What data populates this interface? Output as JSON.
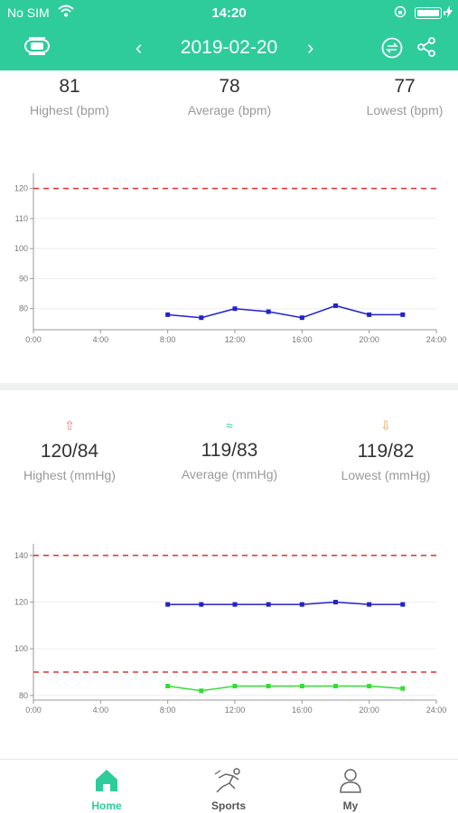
{
  "status_bar": {
    "carrier": "No SIM",
    "time": "14:20"
  },
  "nav": {
    "date": "2019-02-20",
    "prev_symbol": "‹",
    "next_symbol": "›"
  },
  "heart_rate": {
    "highest": {
      "value": "81",
      "label": "Highest (bpm)"
    },
    "average": {
      "value": "78",
      "label": "Average (bpm)"
    },
    "lowest": {
      "value": "77",
      "label": "Lowest (bpm)"
    }
  },
  "blood_pressure": {
    "highest": {
      "value": "120/84",
      "label": "Highest (mmHg)",
      "icon": "⇧",
      "color": "#f08080"
    },
    "average": {
      "value": "119/83",
      "label": "Average (mmHg)",
      "icon": "≈",
      "color": "#2ecc9b"
    },
    "lowest": {
      "value": "119/82",
      "label": "Lowest (mmHg)",
      "icon": "⇩",
      "color": "#f0a050"
    }
  },
  "chart_data": [
    {
      "type": "line",
      "x_ticks": [
        "0:00",
        "4:00",
        "8:00",
        "12:00",
        "16:00",
        "20:00",
        "24:00"
      ],
      "y_ticks": [
        80,
        90,
        100,
        110,
        120
      ],
      "xlim": [
        0,
        24
      ],
      "ylim": [
        73,
        125
      ],
      "threshold": 120,
      "series": [
        {
          "color": "#2222cc",
          "x": [
            8,
            10,
            12,
            14,
            16,
            18,
            20,
            22
          ],
          "values": [
            78,
            77,
            80,
            79,
            77,
            81,
            78,
            78
          ]
        }
      ]
    },
    {
      "type": "line",
      "x_ticks": [
        "0:00",
        "4:00",
        "8:00",
        "12:00",
        "16:00",
        "20:00",
        "24:00"
      ],
      "y_ticks": [
        80,
        100,
        120,
        140
      ],
      "xlim": [
        0,
        24
      ],
      "ylim": [
        78,
        145
      ],
      "thresholds": [
        140,
        90
      ],
      "series": [
        {
          "color": "#2222cc",
          "x": [
            8,
            10,
            12,
            14,
            16,
            18,
            20,
            22
          ],
          "values": [
            119,
            119,
            119,
            119,
            119,
            120,
            119,
            119
          ]
        },
        {
          "color": "#33dd33",
          "x": [
            8,
            10,
            12,
            14,
            16,
            18,
            20,
            22
          ],
          "values": [
            84,
            82,
            84,
            84,
            84,
            84,
            84,
            83
          ]
        }
      ]
    }
  ],
  "tabs": [
    {
      "label": "Home",
      "active": true
    },
    {
      "label": "Sports",
      "active": false
    },
    {
      "label": "My",
      "active": false
    }
  ]
}
